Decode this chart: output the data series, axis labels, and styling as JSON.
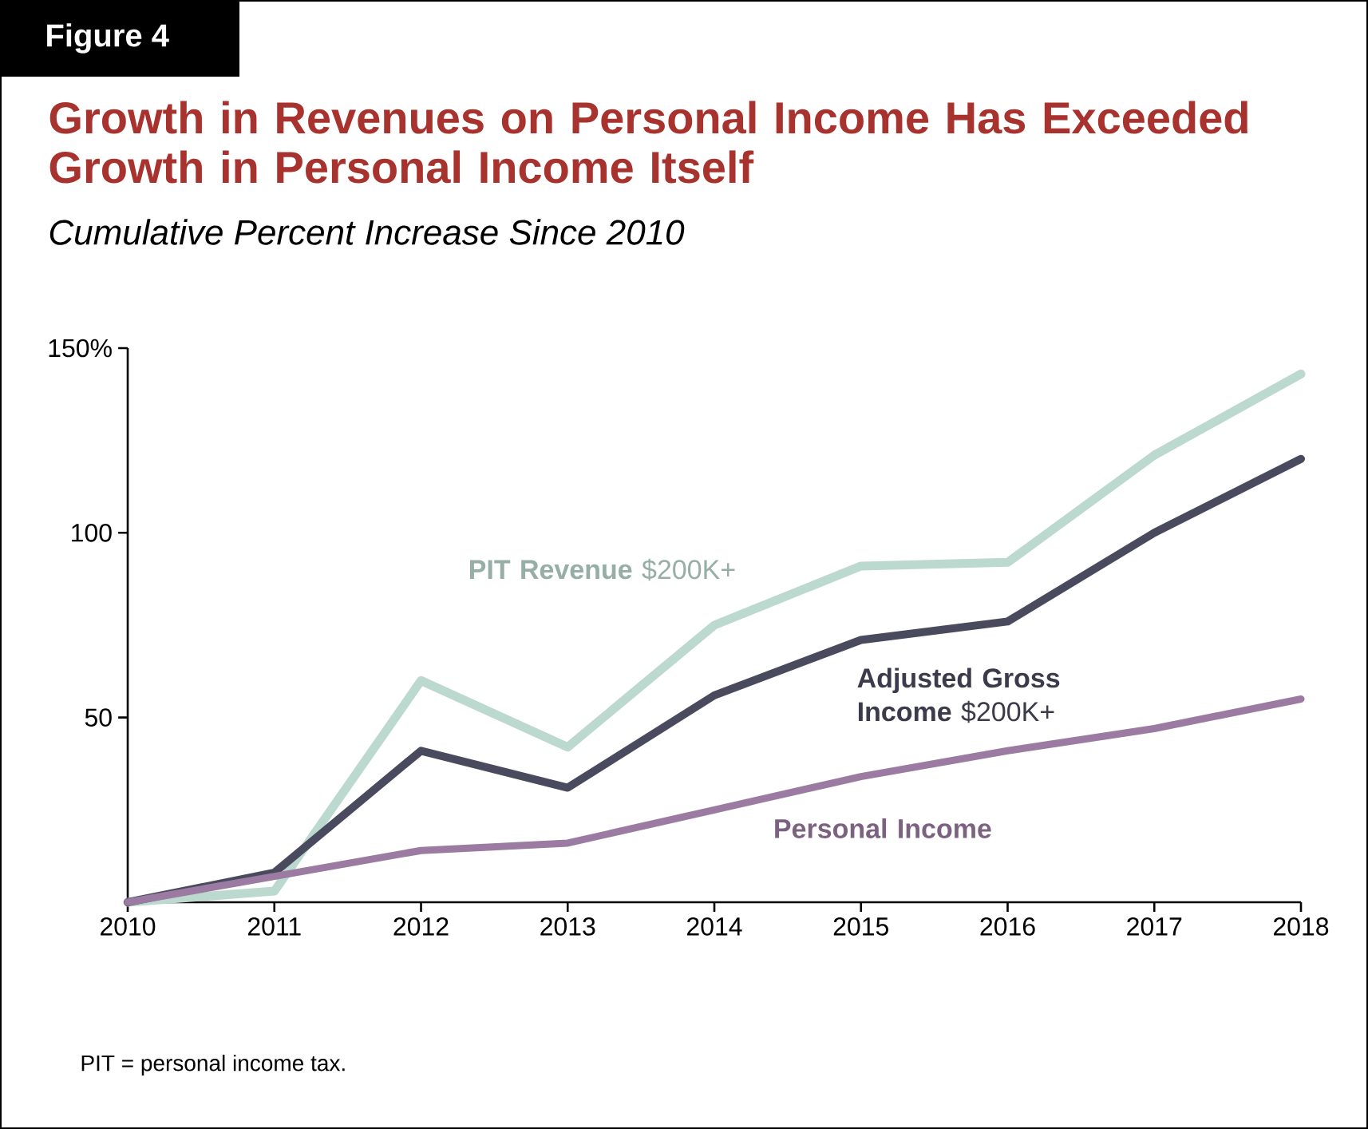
{
  "chart_data": {
    "type": "line",
    "title": "Growth in Revenues on Personal Income Has Exceeded Growth in Personal Income Itself",
    "subtitle": "Cumulative Percent Increase Since 2010",
    "x": [
      2010,
      2011,
      2012,
      2013,
      2014,
      2015,
      2016,
      2017,
      2018
    ],
    "series": [
      {
        "name": "**PIT Revenue** $200K+",
        "color": "#bcd9cf",
        "values": [
          0,
          3,
          60,
          42,
          75,
          91,
          92,
          121,
          143
        ]
      },
      {
        "name": "**Adjusted Gross Income** $200K+",
        "color": "#4a4a5e",
        "values": [
          0,
          8,
          41,
          31,
          56,
          71,
          76,
          100,
          120
        ]
      },
      {
        "name": "**Personal Income**",
        "color": "#9b7ba1",
        "values": [
          0,
          7,
          14,
          16,
          25,
          34,
          41,
          47,
          55
        ]
      }
    ],
    "xlim": [
      2010,
      2018
    ],
    "ylim": [
      0,
      150
    ],
    "xticks": [
      2010,
      2011,
      2012,
      2013,
      2014,
      2015,
      2016,
      2017,
      2018
    ],
    "yticks": [
      50,
      100,
      {
        "value": 150,
        "label": "150%"
      }
    ],
    "marker": "none",
    "line_style": "solid",
    "legend": false,
    "grid": false,
    "annotations": [
      "Figure 4",
      "PIT = personal income tax."
    ]
  }
}
